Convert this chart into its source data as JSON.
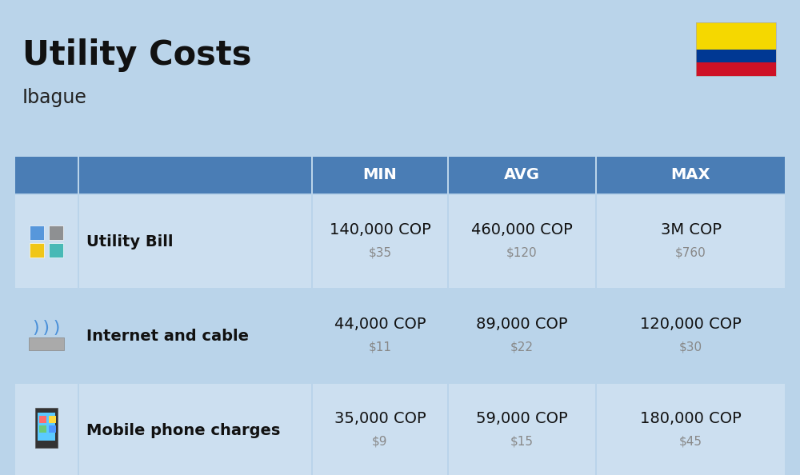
{
  "title": "Utility Costs",
  "subtitle": "Ibague",
  "background_color": "#bad4ea",
  "header_bg_color": "#4a7db5",
  "header_text_color": "#ffffff",
  "row_bg_color_1": "#ccdff0",
  "row_bg_color_2": "#bad4ea",
  "col_headers": [
    "MIN",
    "AVG",
    "MAX"
  ],
  "rows": [
    {
      "label": "Utility Bill",
      "min_cop": "140,000 COP",
      "min_usd": "$35",
      "avg_cop": "460,000 COP",
      "avg_usd": "$120",
      "max_cop": "3M COP",
      "max_usd": "$760"
    },
    {
      "label": "Internet and cable",
      "min_cop": "44,000 COP",
      "min_usd": "$11",
      "avg_cop": "89,000 COP",
      "avg_usd": "$22",
      "max_cop": "120,000 COP",
      "max_usd": "$30"
    },
    {
      "label": "Mobile phone charges",
      "min_cop": "35,000 COP",
      "min_usd": "$9",
      "avg_cop": "59,000 COP",
      "avg_usd": "$15",
      "max_cop": "180,000 COP",
      "max_usd": "$45"
    }
  ],
  "flag_yellow": "#f5d800",
  "flag_blue": "#003893",
  "flag_red": "#ce1126",
  "cop_fontsize": 14,
  "usd_fontsize": 11,
  "label_fontsize": 14,
  "header_fontsize": 14,
  "title_fontsize": 30,
  "subtitle_fontsize": 17
}
